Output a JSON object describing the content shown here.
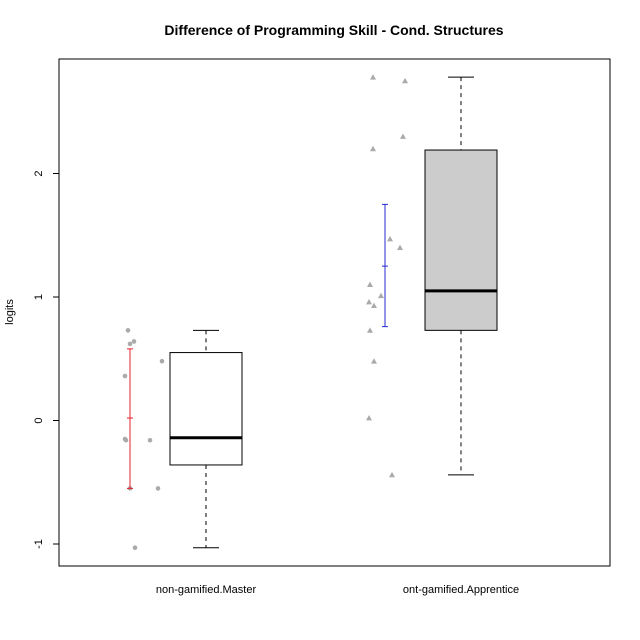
{
  "chart_data": {
    "type": "box",
    "title": "Difference of Programming Skill - Cond. Structures",
    "xlabel": "",
    "ylabel": "logits",
    "ylim": [
      -1.2,
      2.9
    ],
    "yticks": [
      -1,
      0,
      1,
      2
    ],
    "categories": [
      "non-gamified.Master",
      "ont-gamified.Apprentice"
    ],
    "boxes": [
      {
        "name": "non-gamified.Master",
        "whisker_low": -1.03,
        "q1": -0.36,
        "median": -0.14,
        "q3": 0.55,
        "whisker_high": 0.73,
        "fill": "#ffffff"
      },
      {
        "name": "ont-gamified.Apprentice",
        "whisker_low": -0.44,
        "q1": 0.73,
        "median": 1.05,
        "q3": 2.19,
        "whisker_high": 2.78,
        "fill": "#cccccc"
      }
    ],
    "error_bars": [
      {
        "category": "non-gamified.Master",
        "low": -0.55,
        "mean": 0.02,
        "high": 0.58,
        "color": "#e8202a"
      },
      {
        "category": "ont-gamified.Apprentice",
        "low": 0.76,
        "mean": 1.25,
        "high": 1.75,
        "color": "#2a2ad2"
      }
    ],
    "jitter_points": [
      {
        "category": "non-gamified.Master",
        "marker": "circle",
        "color": "#aaaaaa",
        "points": [
          {
            "offset": -0.19,
            "y": 0.73
          },
          {
            "offset": -0.17,
            "y": 0.62
          },
          {
            "offset": -0.13,
            "y": 0.64
          },
          {
            "offset": 0.15,
            "y": 0.48
          },
          {
            "offset": -0.22,
            "y": 0.36
          },
          {
            "offset": -0.22,
            "y": -0.15
          },
          {
            "offset": -0.21,
            "y": -0.16
          },
          {
            "offset": 0.03,
            "y": -0.16
          },
          {
            "offset": -0.17,
            "y": -0.55
          },
          {
            "offset": 0.11,
            "y": -0.55
          },
          {
            "offset": -0.12,
            "y": -1.03
          }
        ]
      },
      {
        "category": "ont-gamified.Apprentice",
        "marker": "triangle",
        "color": "#aaaaaa",
        "points": [
          {
            "offset": -0.18,
            "y": 2.78
          },
          {
            "offset": 0.14,
            "y": 2.75
          },
          {
            "offset": 0.12,
            "y": 2.3
          },
          {
            "offset": -0.18,
            "y": 2.2
          },
          {
            "offset": -0.01,
            "y": 1.47
          },
          {
            "offset": 0.09,
            "y": 1.4
          },
          {
            "offset": -0.21,
            "y": 1.1
          },
          {
            "offset": -0.1,
            "y": 1.01
          },
          {
            "offset": -0.22,
            "y": 0.96
          },
          {
            "offset": -0.17,
            "y": 0.93
          },
          {
            "offset": -0.21,
            "y": 0.73
          },
          {
            "offset": -0.17,
            "y": 0.48
          },
          {
            "offset": -0.22,
            "y": 0.02
          },
          {
            "offset": 0.01,
            "y": -0.44
          }
        ]
      }
    ]
  }
}
